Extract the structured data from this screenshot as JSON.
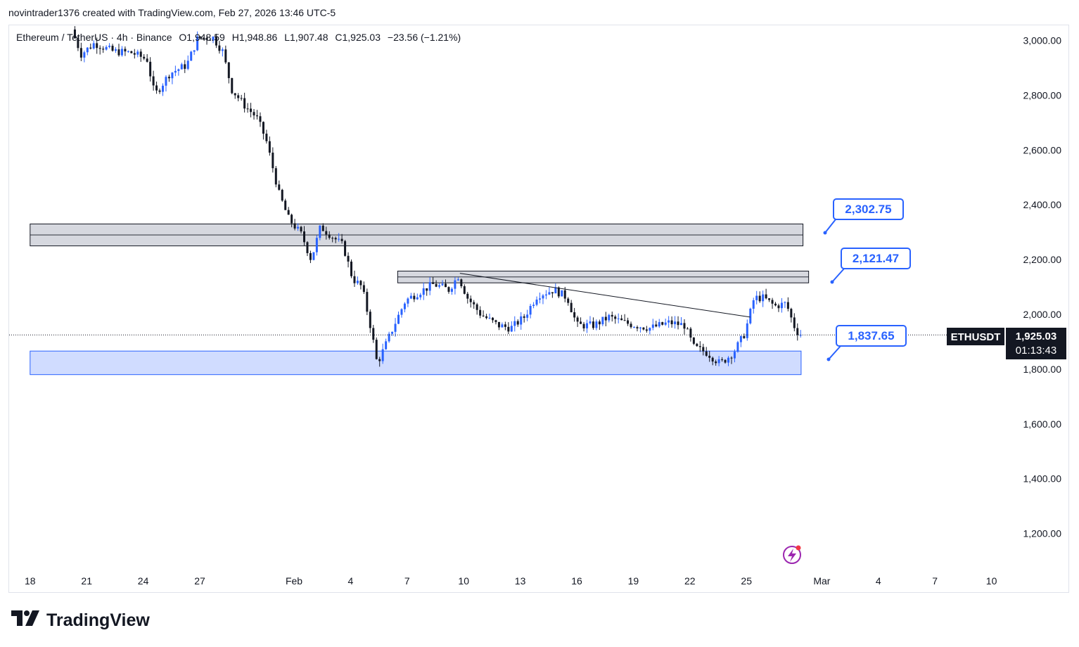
{
  "header": {
    "attribution": "novintrader1376 created with TradingView.com, Feb 27, 2026 13:46 UTC-5"
  },
  "legend": {
    "symbol": "Ethereum / TetherUS · 4h · Binance",
    "open": "O1,948.59",
    "high": "H1,948.86",
    "low": "L1,907.48",
    "close": "C1,925.03",
    "change": "−23.56 (−1.21%)"
  },
  "ticker": {
    "name": "ETHUSDT",
    "price": "1,925.03",
    "countdown": "01:13:43"
  },
  "callouts": [
    {
      "label": "2,302.75",
      "value": 2302.75
    },
    {
      "label": "2,121.47",
      "value": 2121.47
    },
    {
      "label": "1,837.65",
      "value": 1837.65
    }
  ],
  "branding": {
    "logo_text": "TradingView"
  },
  "colors": {
    "up": "#2962ff",
    "down": "#131722",
    "zone_gray": "#d1d4dc",
    "zone_blue": "#d0dcff",
    "accent": "#2962ff",
    "flash": "#9c27b0"
  },
  "chart_data": {
    "type": "candlestick",
    "title": "Ethereum / TetherUS · 4h · Binance",
    "y_axis": {
      "min": 1100,
      "max": 3050,
      "ticks": [
        "3,000.00",
        "2,800.00",
        "2,600.00",
        "2,400.00",
        "2,200.00",
        "2,000.00",
        "1,800.00",
        "1,600.00",
        "1,400.00",
        "1,200.00"
      ],
      "tick_values": [
        3000,
        2800,
        2600,
        2400,
        2200,
        2000,
        1800,
        1600,
        1400,
        1200
      ]
    },
    "x_axis": {
      "labels": [
        "18",
        "21",
        "24",
        "27",
        "Feb",
        "4",
        "7",
        "10",
        "13",
        "16",
        "19",
        "22",
        "25",
        "Mar",
        "4",
        "7",
        "10"
      ],
      "label_days": [
        -14,
        -11,
        -8,
        -5,
        0,
        3,
        6,
        9,
        12,
        15,
        18,
        21,
        24,
        28,
        31,
        34,
        37
      ]
    },
    "zones": [
      {
        "name": "resistance-zone-upper",
        "from_day": -14,
        "to_day": 27,
        "low": 2250,
        "high": 2330,
        "color": "#d1d4dc"
      },
      {
        "name": "resistance-zone-lower",
        "from_day": 5.5,
        "to_day": 27.3,
        "low": 2115,
        "high": 2158,
        "color": "#d1d4dc"
      },
      {
        "name": "support-zone",
        "from_day": -14,
        "to_day": 26.9,
        "low": 1780,
        "high": 1866,
        "color": "#d0dcff"
      }
    ],
    "trendline": {
      "from": {
        "day": 8.8,
        "price": 2150
      },
      "to": {
        "day": 24.2,
        "price": 1990
      }
    },
    "current_price": 1925.03,
    "price_path": [
      {
        "day": -11.7,
        "price": 3040
      },
      {
        "day": -11.2,
        "price": 2950
      },
      {
        "day": -10.5,
        "price": 2990
      },
      {
        "day": -9.5,
        "price": 2960
      },
      {
        "day": -8.5,
        "price": 2955
      },
      {
        "day": -7.7,
        "price": 2930
      },
      {
        "day": -7.3,
        "price": 2800
      },
      {
        "day": -6.5,
        "price": 2880
      },
      {
        "day": -5.6,
        "price": 2910
      },
      {
        "day": -5.0,
        "price": 3010
      },
      {
        "day": -4.2,
        "price": 3010
      },
      {
        "day": -3.7,
        "price": 2960
      },
      {
        "day": -3.2,
        "price": 2820
      },
      {
        "day": -2.5,
        "price": 2760
      },
      {
        "day": -1.9,
        "price": 2720
      },
      {
        "day": -1.4,
        "price": 2640
      },
      {
        "day": -0.7,
        "price": 2440
      },
      {
        "day": -0.2,
        "price": 2350
      },
      {
        "day": 0.5,
        "price": 2290
      },
      {
        "day": 1.0,
        "price": 2200
      },
      {
        "day": 1.5,
        "price": 2320
      },
      {
        "day": 2.2,
        "price": 2280
      },
      {
        "day": 2.7,
        "price": 2250
      },
      {
        "day": 3.2,
        "price": 2130
      },
      {
        "day": 3.7,
        "price": 2100
      },
      {
        "day": 4.2,
        "price": 1940
      },
      {
        "day": 4.5,
        "price": 1820
      },
      {
        "day": 4.9,
        "price": 1880
      },
      {
        "day": 5.4,
        "price": 1960
      },
      {
        "day": 6.0,
        "price": 2050
      },
      {
        "day": 6.7,
        "price": 2080
      },
      {
        "day": 7.5,
        "price": 2110
      },
      {
        "day": 8.3,
        "price": 2090
      },
      {
        "day": 8.8,
        "price": 2140
      },
      {
        "day": 9.3,
        "price": 2060
      },
      {
        "day": 10.0,
        "price": 2000
      },
      {
        "day": 10.9,
        "price": 1960
      },
      {
        "day": 11.6,
        "price": 1950
      },
      {
        "day": 12.3,
        "price": 1990
      },
      {
        "day": 13.0,
        "price": 2070
      },
      {
        "day": 13.9,
        "price": 2090
      },
      {
        "day": 14.6,
        "price": 2060
      },
      {
        "day": 15.1,
        "price": 1960
      },
      {
        "day": 16.0,
        "price": 1960
      },
      {
        "day": 16.8,
        "price": 1990
      },
      {
        "day": 17.6,
        "price": 1970
      },
      {
        "day": 18.2,
        "price": 1960
      },
      {
        "day": 19.0,
        "price": 1950
      },
      {
        "day": 20.0,
        "price": 1970
      },
      {
        "day": 20.8,
        "price": 1960
      },
      {
        "day": 21.3,
        "price": 1880
      },
      {
        "day": 22.0,
        "price": 1860
      },
      {
        "day": 22.7,
        "price": 1820
      },
      {
        "day": 23.4,
        "price": 1860
      },
      {
        "day": 24.0,
        "price": 1930
      },
      {
        "day": 24.5,
        "price": 2060
      },
      {
        "day": 25.0,
        "price": 2060
      },
      {
        "day": 25.6,
        "price": 2030
      },
      {
        "day": 26.2,
        "price": 2040
      },
      {
        "day": 26.6,
        "price": 1960
      },
      {
        "day": 26.9,
        "price": 1925
      }
    ]
  }
}
